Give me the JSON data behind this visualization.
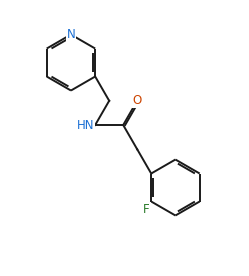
{
  "background_color": "#ffffff",
  "line_color": "#1a1a1a",
  "label_color_N": "#1a6fd4",
  "label_color_O": "#cc4400",
  "label_color_F": "#2a7a2a",
  "label_color_HN": "#1a6fd4",
  "linewidth": 1.4,
  "figsize": [
    2.49,
    2.76
  ],
  "dpi": 100,
  "xlim": [
    0,
    10
  ],
  "ylim": [
    0,
    11
  ]
}
